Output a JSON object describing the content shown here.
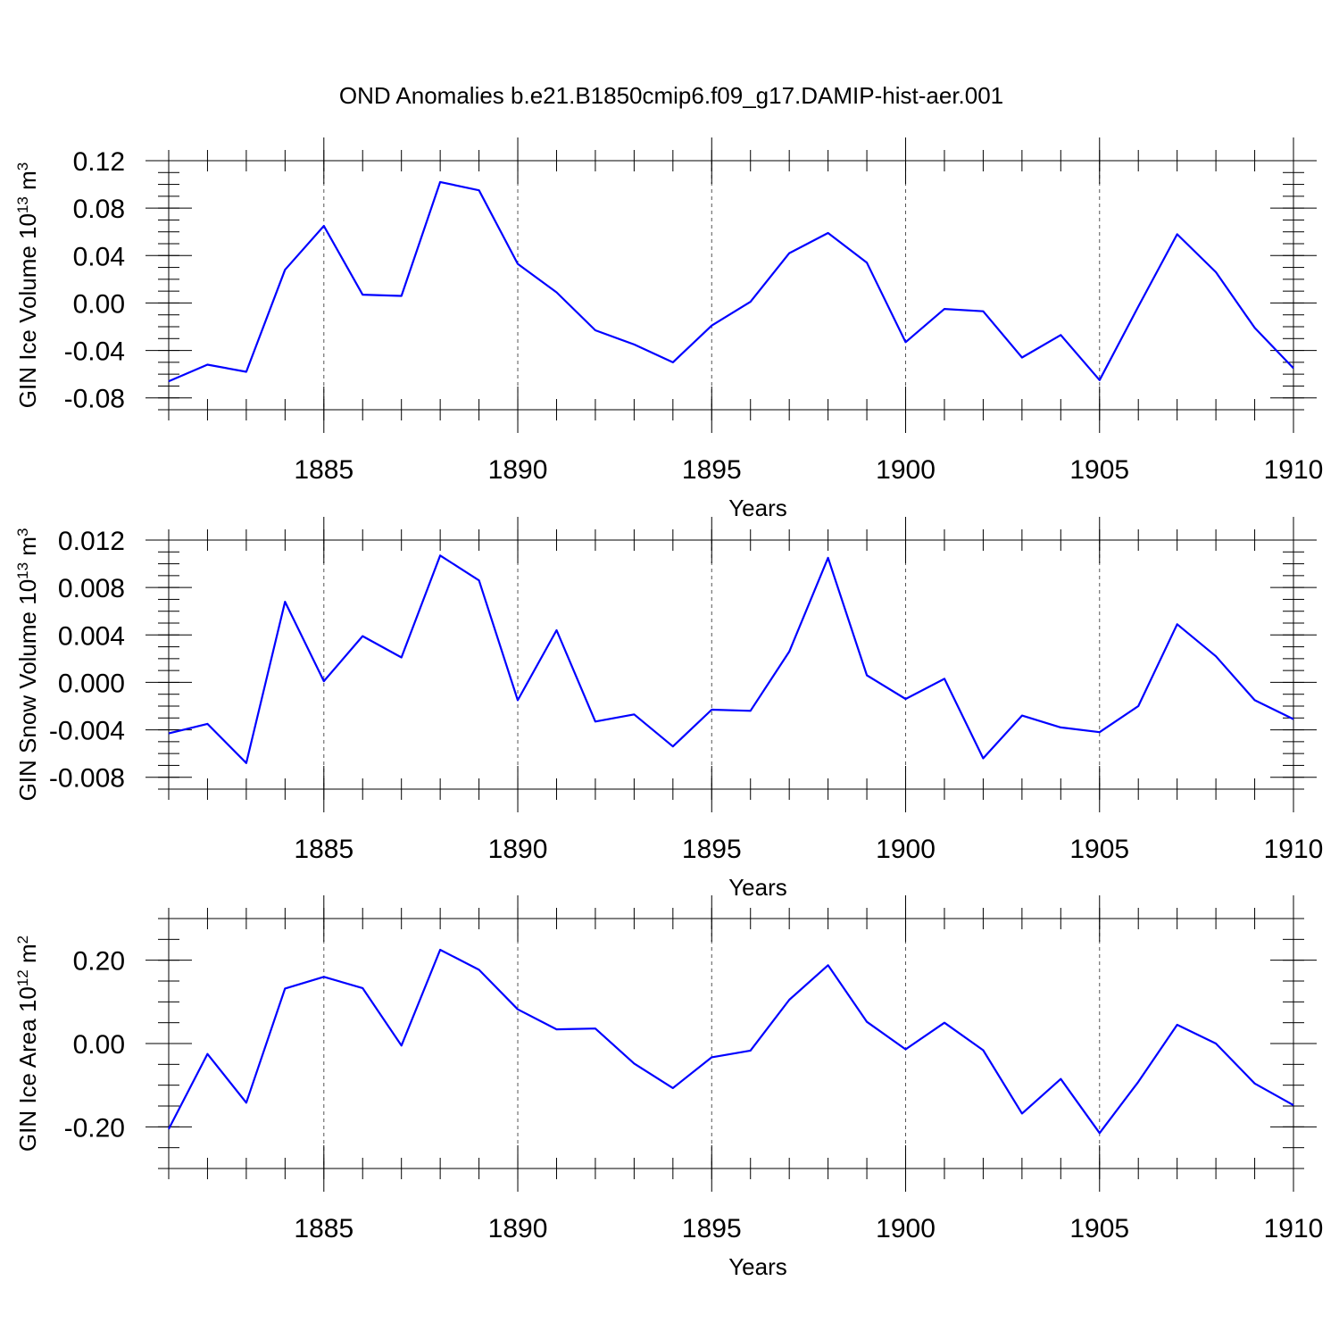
{
  "title": "OND Anomalies b.e21.B1850cmip6.f09_g17.DAMIP-hist-aer.001",
  "colors": {
    "line": "#0000ff",
    "axes": "#000000",
    "grid": "#555555"
  },
  "chart_data": [
    {
      "type": "line",
      "xlabel": "Years",
      "ylabel": "GIN Ice Volume 10",
      "ylabel_exp": "13",
      "ylabel_unit": "m",
      "ylabel_unit_exp": "3",
      "xlim": [
        1881,
        1910
      ],
      "ylim": [
        -0.09,
        0.12
      ],
      "x_ticks": [
        "1885",
        "1890",
        "1895",
        "1900",
        "1905",
        "1910"
      ],
      "y_ticks": [
        "0.12",
        "0.08",
        "0.04",
        "0.00",
        "-0.04",
        "-0.08"
      ],
      "grid": "dashed vertical at labeled years",
      "series": [
        {
          "x": [
            1881,
            1882,
            1883,
            1884,
            1885,
            1886,
            1887,
            1888,
            1889,
            1890,
            1891,
            1892,
            1893,
            1894,
            1895,
            1896,
            1897,
            1898,
            1899,
            1900,
            1901,
            1902,
            1903,
            1904,
            1905,
            1906,
            1907,
            1908,
            1909,
            1910
          ],
          "values": [
            -0.066,
            -0.052,
            -0.058,
            0.028,
            0.065,
            0.007,
            0.006,
            0.102,
            0.095,
            0.033,
            0.009,
            -0.023,
            -0.035,
            -0.05,
            -0.019,
            0.001,
            0.042,
            0.059,
            0.034,
            -0.033,
            -0.005,
            -0.007,
            -0.046,
            -0.027,
            -0.065,
            -0.003,
            0.058,
            0.026,
            -0.021,
            -0.055
          ]
        }
      ]
    },
    {
      "type": "line",
      "xlabel": "Years",
      "ylabel": "GIN Snow Volume 10",
      "ylabel_exp": "13",
      "ylabel_unit": "m",
      "ylabel_unit_exp": "3",
      "xlim": [
        1881,
        1910
      ],
      "ylim": [
        -0.009,
        0.012
      ],
      "x_ticks": [
        "1885",
        "1890",
        "1895",
        "1900",
        "1905",
        "1910"
      ],
      "y_ticks": [
        "0.012",
        "0.008",
        "0.004",
        "0.000",
        "-0.004",
        "-0.008"
      ],
      "grid": "dashed vertical at labeled years",
      "series": [
        {
          "x": [
            1881,
            1882,
            1883,
            1884,
            1885,
            1886,
            1887,
            1888,
            1889,
            1890,
            1891,
            1892,
            1893,
            1894,
            1895,
            1896,
            1897,
            1898,
            1899,
            1900,
            1901,
            1902,
            1903,
            1904,
            1905,
            1906,
            1907,
            1908,
            1909,
            1910
          ],
          "values": [
            -0.0043,
            -0.0035,
            -0.0068,
            0.0068,
            0.0001,
            0.0039,
            0.0021,
            0.0107,
            0.0086,
            -0.0015,
            0.0044,
            -0.0033,
            -0.0027,
            -0.0054,
            -0.0023,
            -0.0024,
            0.0026,
            0.0105,
            0.0006,
            -0.0014,
            0.0003,
            -0.0064,
            -0.0028,
            -0.0038,
            -0.0042,
            -0.002,
            0.0049,
            0.0022,
            -0.0015,
            -0.0031
          ]
        }
      ]
    },
    {
      "type": "line",
      "xlabel": "Years",
      "ylabel": "GIN Ice Area 10",
      "ylabel_exp": "12",
      "ylabel_unit": "m",
      "ylabel_unit_exp": "2",
      "xlim": [
        1881,
        1910
      ],
      "ylim": [
        -0.3,
        0.3
      ],
      "x_ticks": [
        "1885",
        "1890",
        "1895",
        "1900",
        "1905",
        "1910"
      ],
      "y_ticks": [
        "0.20",
        "0.00",
        "-0.20"
      ],
      "grid": "dashed vertical at labeled years",
      "series": [
        {
          "x": [
            1881,
            1882,
            1883,
            1884,
            1885,
            1886,
            1887,
            1888,
            1889,
            1890,
            1891,
            1892,
            1893,
            1894,
            1895,
            1896,
            1897,
            1898,
            1899,
            1900,
            1901,
            1902,
            1903,
            1904,
            1905,
            1906,
            1907,
            1908,
            1909,
            1910
          ],
          "values": [
            -0.205,
            -0.025,
            -0.142,
            0.132,
            0.16,
            0.133,
            -0.005,
            0.225,
            0.177,
            0.082,
            0.034,
            0.036,
            -0.048,
            -0.107,
            -0.033,
            -0.017,
            0.105,
            0.188,
            0.052,
            -0.014,
            0.05,
            -0.016,
            -0.168,
            -0.085,
            -0.215,
            -0.092,
            0.045,
            0.0,
            -0.096,
            -0.148
          ]
        }
      ]
    }
  ]
}
